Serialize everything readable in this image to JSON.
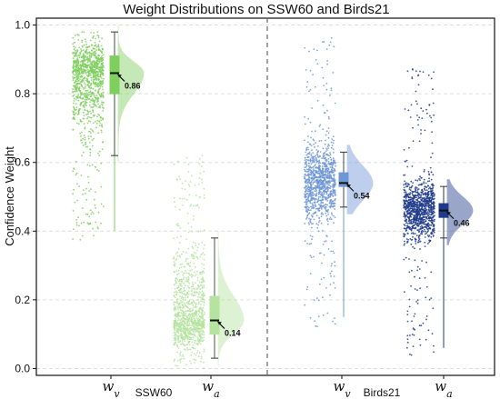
{
  "chart_data": {
    "type": "raincloud",
    "title": "Weight Distributions on SSW60 and Birds21",
    "xlabel": "",
    "ylabel": "Confidence Weight",
    "ylim": [
      -0.02,
      1.02
    ],
    "yticks": [
      "0.0",
      "0.2",
      "0.4",
      "0.6",
      "0.8",
      "1.0"
    ],
    "grid": true,
    "groups": [
      {
        "name": "SSW60",
        "tick_label": "SSW60"
      },
      {
        "name": "Birds21",
        "tick_label": "Birds21"
      }
    ],
    "series": [
      {
        "group": "SSW60",
        "label_base": "w",
        "label_sub": "v",
        "color": "#7fcf5e",
        "median": 0.86,
        "median_label": "0.86",
        "q1": 0.8,
        "q3": 0.91,
        "whisker_low": 0.62,
        "whisker_high": 0.98,
        "min": 0.37,
        "max": 0.98,
        "spread": 0.06,
        "skew": -1
      },
      {
        "group": "SSW60",
        "label_base": "w",
        "label_sub": "a",
        "color": "#b5e3a0",
        "median": 0.14,
        "median_label": "0.14",
        "q1": 0.1,
        "q3": 0.21,
        "whisker_low": 0.03,
        "whisker_high": 0.38,
        "min": 0.0,
        "max": 0.63,
        "spread": 0.07,
        "skew": 1
      },
      {
        "group": "Birds21",
        "label_base": "w",
        "label_sub": "v",
        "color": "#6f97d6",
        "median": 0.54,
        "median_label": "0.54",
        "q1": 0.53,
        "q3": 0.57,
        "whisker_low": 0.47,
        "whisker_high": 0.63,
        "min": 0.12,
        "max": 0.97,
        "spread": 0.05,
        "skew": 0
      },
      {
        "group": "Birds21",
        "label_base": "w",
        "label_sub": "a",
        "color": "#1f3a8a",
        "median": 0.46,
        "median_label": "0.46",
        "q1": 0.44,
        "q3": 0.48,
        "whisker_low": 0.38,
        "whisker_high": 0.53,
        "min": 0.03,
        "max": 0.88,
        "spread": 0.04,
        "skew": 0
      }
    ]
  }
}
